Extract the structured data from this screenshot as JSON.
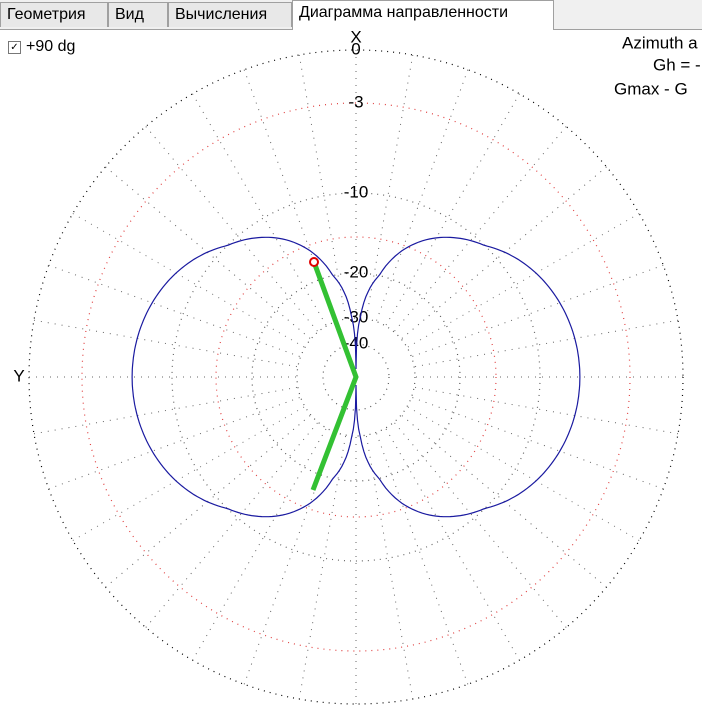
{
  "tabs": [
    "Геометрия",
    "Вид",
    "Вычисления",
    "Диаграмма направленности"
  ],
  "active_tab": 3,
  "checkbox": {
    "label": "+90 dg",
    "checked": true
  },
  "plot": {
    "x_axis_label": "X",
    "y_axis_label": "Y",
    "ring_labels": [
      "0",
      "-3",
      "-10",
      "-20",
      "-30",
      "-40"
    ],
    "info": [
      "Azimuth a",
      "Gh = -",
      "Gmax - G"
    ]
  }
}
